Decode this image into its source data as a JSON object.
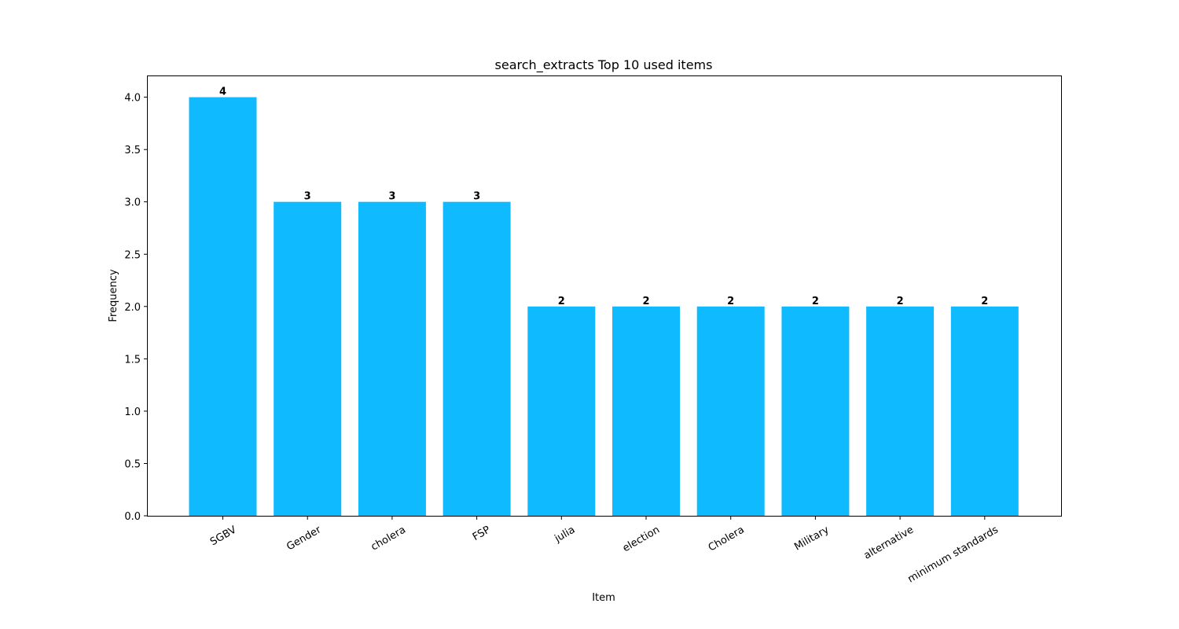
{
  "chart_data": {
    "type": "bar",
    "title": "search_extracts Top 10 used items",
    "xlabel": "Item",
    "ylabel": "Frequency",
    "categories": [
      "SGBV",
      "Gender",
      "cholera",
      "FSP",
      "julia",
      "election",
      "Cholera",
      "Military",
      "alternative",
      "minimum standards"
    ],
    "values": [
      4,
      3,
      3,
      3,
      2,
      2,
      2,
      2,
      2,
      2
    ],
    "ylim": [
      0,
      4.2
    ],
    "yticks": [
      "0.0",
      "0.5",
      "1.0",
      "1.5",
      "2.0",
      "2.5",
      "3.0",
      "3.5",
      "4.0"
    ],
    "bar_color": "#10baff",
    "grid": false,
    "legend": "none"
  }
}
